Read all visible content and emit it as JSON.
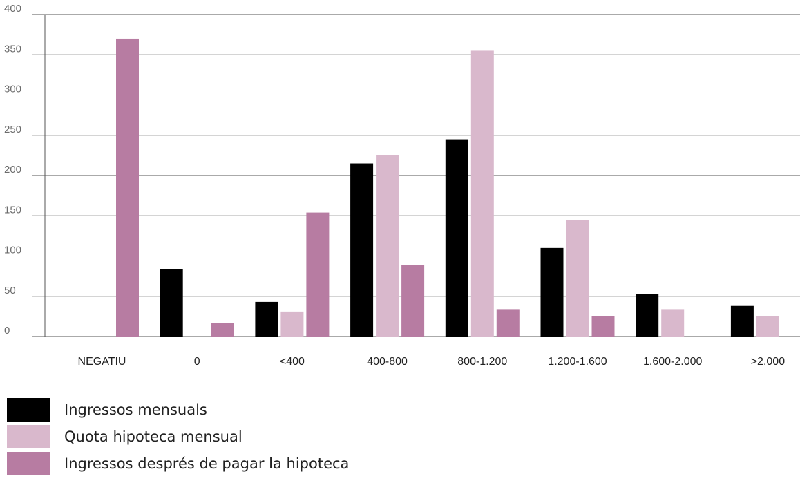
{
  "chart_data": {
    "type": "bar",
    "categories": [
      "NEGATIU",
      "0",
      "<400",
      "400-800",
      "800-1.200",
      "1.200-1.600",
      "1.600-2.000",
      ">2.000"
    ],
    "series": [
      {
        "name": "Ingressos mensuals",
        "color": "#000000",
        "values": [
          null,
          84,
          43,
          215,
          245,
          110,
          53,
          38
        ]
      },
      {
        "name": "Quota hipoteca mensual",
        "color": "#d9b8cc",
        "values": [
          null,
          null,
          31,
          225,
          355,
          145,
          34,
          25
        ]
      },
      {
        "name": "Ingressos després de pagar la hipoteca",
        "color": "#b77ca2",
        "values": [
          370,
          17,
          154,
          89,
          34,
          25,
          null,
          null
        ]
      }
    ],
    "yticks": [
      0,
      50,
      100,
      150,
      200,
      250,
      300,
      350,
      400
    ],
    "ylim": [
      0,
      400
    ],
    "grid": true,
    "legend_position": "bottom-left"
  }
}
